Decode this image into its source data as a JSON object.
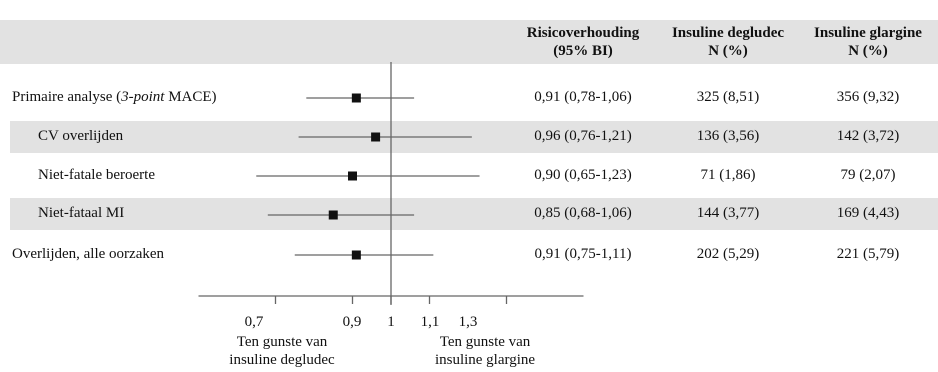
{
  "columns": {
    "risk": {
      "line1": "Risicoverhouding",
      "line2": "(95% BI)"
    },
    "degludec": {
      "line1": "Insuline degludec",
      "line2": "N (%)"
    },
    "glargine": {
      "line1": "Insuline glargine",
      "line2": "N (%)"
    }
  },
  "rows": [
    {
      "label_prefix": "Primaire analyse (",
      "label_italic": "3-point",
      "label_suffix": " MACE)",
      "risk": "0,91 (0,78-1,06)",
      "degludec": "325 (8,51)",
      "glargine": "356 (9,32)"
    },
    {
      "label": "CV overlijden",
      "risk": "0,96 (0,76-1,21)",
      "degludec": "136 (3,56)",
      "glargine": "142 (3,72)"
    },
    {
      "label": "Niet-fatale beroerte",
      "risk": "0,90 (0,65-1,23)",
      "degludec": "71 (1,86)",
      "glargine": "79 (2,07)"
    },
    {
      "label": "Niet-fataal MI",
      "risk": "0,85 (0,68-1,06)",
      "degludec": "144 (3,77)",
      "glargine": "169 (4,43)"
    },
    {
      "label": "Overlijden, alle oorzaken",
      "risk": "0,91 (0,75-1,11)",
      "degludec": "202 (5,29)",
      "glargine": "221 (5,79)"
    }
  ],
  "chart_data": {
    "type": "forest",
    "x_reference": 1,
    "xlim": [
      0.5,
      1.5
    ],
    "series": [
      {
        "estimate": 0.91,
        "lower": 0.78,
        "upper": 1.06
      },
      {
        "estimate": 0.96,
        "lower": 0.76,
        "upper": 1.21
      },
      {
        "estimate": 0.9,
        "lower": 0.65,
        "upper": 1.23
      },
      {
        "estimate": 0.85,
        "lower": 0.68,
        "upper": 1.06
      },
      {
        "estimate": 0.91,
        "lower": 0.75,
        "upper": 1.11
      }
    ],
    "ticks": [
      {
        "value": 0.7,
        "label": "0,7"
      },
      {
        "value": 0.9,
        "label": "0,9"
      },
      {
        "value": 1.0,
        "label": "1"
      },
      {
        "value": 1.1,
        "label": "1,1"
      },
      {
        "value": 1.3,
        "label": "1,3"
      }
    ],
    "favours": {
      "left": {
        "line1": "Ten gunste van",
        "line2": "insuline degludec"
      },
      "right": {
        "line1": "Ten gunste van",
        "line2": "insuline glargine"
      }
    },
    "colors": {
      "line": "#666666",
      "marker": "#111111",
      "band": "#e2e2e2"
    }
  }
}
